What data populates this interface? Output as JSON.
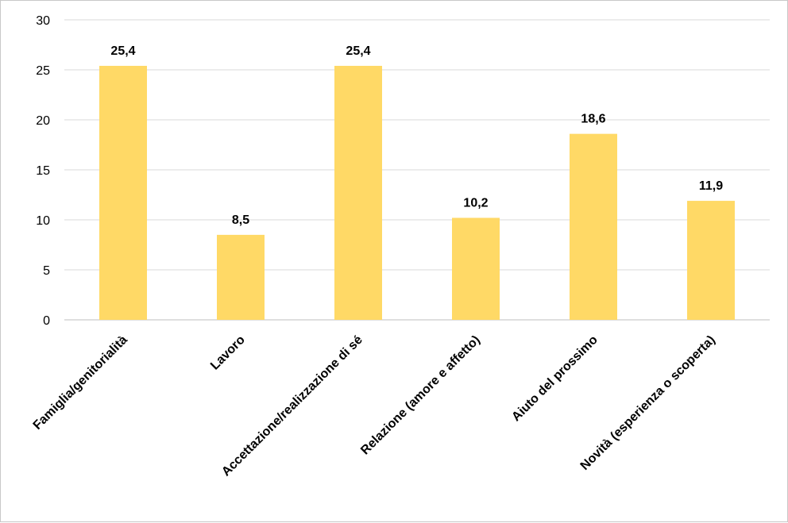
{
  "chart_data": {
    "type": "bar",
    "categories": [
      "Famiglia/genitorialità",
      "Lavoro",
      "Accettazione/realizzazione di sé",
      "Relazione (amore e affetto)",
      "Aiuto del prossimo",
      "Novità (esperienza o scoperta)"
    ],
    "values": [
      25.4,
      8.5,
      25.4,
      10.2,
      18.6,
      11.9
    ],
    "value_labels": [
      "25,4",
      "8,5",
      "25,4",
      "10,2",
      "18,6",
      "11,9"
    ],
    "yticks": [
      "0",
      "5",
      "10",
      "15",
      "20",
      "25",
      "30"
    ],
    "ylim": [
      0,
      30
    ],
    "grid": true,
    "legend": "none",
    "bar_color": "#FFD966",
    "grid_color": "#D9D9D9"
  }
}
